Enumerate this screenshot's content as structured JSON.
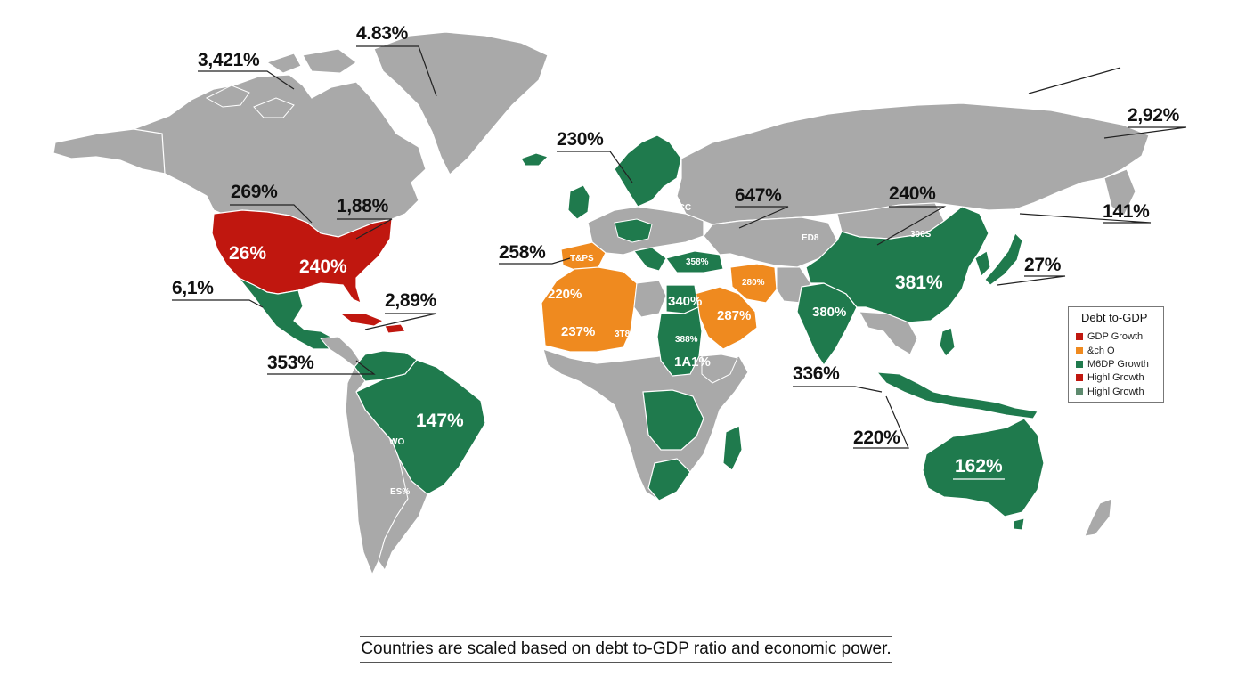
{
  "colors": {
    "land": "#a9a9a9",
    "border": "#ffffff",
    "red": "#c0170f",
    "orange": "#ef8a1f",
    "green": "#1f7a4d",
    "sea": "#ffffff",
    "leader": "#222222"
  },
  "callouts": {
    "greenland": "4.83%",
    "canada_arctic": "3,421%",
    "canada": "269%",
    "us_northeast": "1,88%",
    "mexico": "6,1%",
    "caribbean": "2,89%",
    "central_america": "353%",
    "iceland_europe": "230%",
    "iberia": "258%",
    "russia": "647%",
    "mongolia_china": "240%",
    "russia_east": "2,92%",
    "japan_north": "141%",
    "japan": "27%",
    "indonesia": "336%",
    "australia_west": "220%"
  },
  "in_map": {
    "usa_west": "26%",
    "usa_east": "240%",
    "brazil": "147%",
    "china": "381%",
    "australia": "162%",
    "india": "380%",
    "north_africa_west": "220%",
    "north_africa_mid": "237%",
    "north_africa_e": "3T8",
    "egypt": "340%",
    "sudan": "388%",
    "arabia": "287%",
    "iran": "280%",
    "turkey": "358%",
    "iberia_label": "T&PS",
    "horn": "1A1%",
    "s_america_small": "WO",
    "argentina_small": "ES%",
    "ukraine_small": "ECC",
    "central_asia_small": "ED8",
    "mongolia_small": "300S"
  },
  "legend": {
    "title": "Debt to-GDP",
    "items": [
      {
        "label": "GDP Growth",
        "color": "#c0170f"
      },
      {
        "label": "&ch O",
        "color": "#ef8a1f"
      },
      {
        "label": "M6DP Growth",
        "color": "#1f7a4d"
      },
      {
        "label": "Highl Growth",
        "color": "#c0170f"
      },
      {
        "label": "Highl Growth",
        "color": "#5d8a6e"
      }
    ]
  },
  "footer": "Countries are scaled based on debt to-GDP ratio and economic power."
}
